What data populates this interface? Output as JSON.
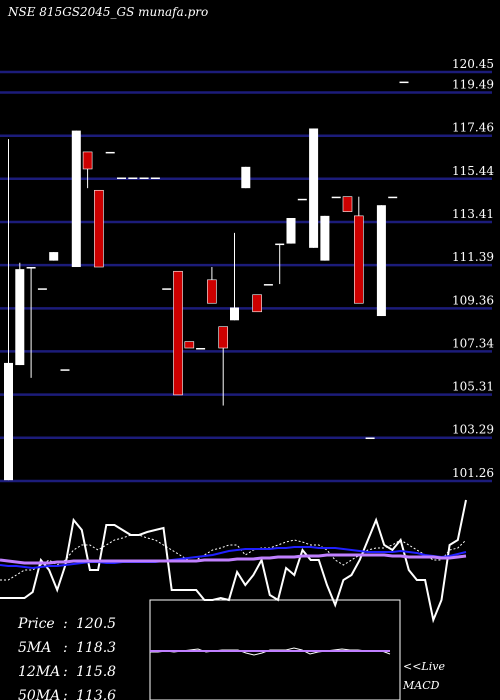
{
  "chart_data": {
    "type": "candlestick",
    "title": "NSE 815GS2045_GS munafa.pro",
    "y_ticks": [
      120.45,
      119.49,
      117.46,
      115.44,
      113.41,
      111.39,
      109.36,
      107.34,
      105.31,
      103.29,
      101.26
    ],
    "ylim": [
      101.26,
      120.45
    ],
    "grid": true,
    "colors": {
      "up": "#ffffff",
      "down": "#cc0000",
      "grid": "#1c1c7a",
      "ma_blue": "#2020ff",
      "ma_violet": "#c080ff",
      "macd_frame": "#ffffff"
    },
    "candles": [
      {
        "o": 101.3,
        "h": 117.3,
        "l": 101.3,
        "c": 106.8
      },
      {
        "o": 106.7,
        "h": 111.5,
        "l": 106.7,
        "c": 111.2
      },
      {
        "o": 111.3,
        "h": 111.3,
        "l": 106.1,
        "c": 111.3
      },
      {
        "o": 110.3,
        "h": 110.3,
        "l": 110.3,
        "c": 110.3
      },
      {
        "o": 111.6,
        "h": 112.0,
        "l": 111.6,
        "c": 112.0
      },
      {
        "o": 106.5,
        "h": 106.5,
        "l": 106.5,
        "c": 106.5
      },
      {
        "o": 111.3,
        "h": 117.7,
        "l": 111.3,
        "c": 117.7
      },
      {
        "o": 116.7,
        "h": 116.7,
        "l": 115.0,
        "c": 115.9
      },
      {
        "o": 114.9,
        "h": 114.9,
        "l": 111.3,
        "c": 111.3
      },
      {
        "o": 116.7,
        "h": 116.7,
        "l": 116.7,
        "c": 116.7
      },
      {
        "o": 115.5,
        "h": 115.5,
        "l": 115.5,
        "c": 115.5
      },
      {
        "o": 115.5,
        "h": 115.5,
        "l": 115.5,
        "c": 115.5
      },
      {
        "o": 115.5,
        "h": 115.5,
        "l": 115.5,
        "c": 115.5
      },
      {
        "o": 115.5,
        "h": 115.5,
        "l": 115.5,
        "c": 115.5
      },
      {
        "o": 110.3,
        "h": 110.3,
        "l": 110.3,
        "c": 110.3
      },
      {
        "o": 111.1,
        "h": 111.1,
        "l": 105.3,
        "c": 105.3
      },
      {
        "o": 107.8,
        "h": 107.8,
        "l": 107.5,
        "c": 107.5
      },
      {
        "o": 107.5,
        "h": 107.5,
        "l": 107.5,
        "c": 107.5
      },
      {
        "o": 110.7,
        "h": 111.3,
        "l": 109.6,
        "c": 109.6
      },
      {
        "o": 108.5,
        "h": 108.5,
        "l": 104.8,
        "c": 107.5
      },
      {
        "o": 108.8,
        "h": 112.9,
        "l": 108.8,
        "c": 109.4
      },
      {
        "o": 115.0,
        "h": 116.0,
        "l": 115.0,
        "c": 116.0
      },
      {
        "o": 110.0,
        "h": 110.0,
        "l": 109.2,
        "c": 109.2
      },
      {
        "o": 110.5,
        "h": 110.5,
        "l": 110.5,
        "c": 110.5
      },
      {
        "o": 112.4,
        "h": 112.4,
        "l": 110.5,
        "c": 112.4
      },
      {
        "o": 112.4,
        "h": 113.6,
        "l": 112.4,
        "c": 113.6
      },
      {
        "o": 114.5,
        "h": 114.5,
        "l": 114.5,
        "c": 114.5
      },
      {
        "o": 112.2,
        "h": 117.8,
        "l": 112.2,
        "c": 117.8
      },
      {
        "o": 111.6,
        "h": 113.7,
        "l": 111.6,
        "c": 113.7
      },
      {
        "o": 114.6,
        "h": 114.6,
        "l": 114.6,
        "c": 114.6
      },
      {
        "o": 114.6,
        "h": 114.6,
        "l": 113.9,
        "c": 113.9
      },
      {
        "o": 113.7,
        "h": 114.6,
        "l": 109.6,
        "c": 109.6
      },
      {
        "o": 103.3,
        "h": 103.3,
        "l": 103.3,
        "c": 103.3
      },
      {
        "o": 109.0,
        "h": 114.2,
        "l": 109.0,
        "c": 114.2
      },
      {
        "o": 114.6,
        "h": 114.6,
        "l": 114.6,
        "c": 114.6
      },
      {
        "o": 120.0,
        "h": 120.0,
        "l": 120.0,
        "c": 120.0
      }
    ],
    "indicator_lines": [
      {
        "name": "white",
        "values": [
          598,
          598,
          598,
          598,
          592,
          560,
          570,
          590,
          565,
          520,
          530,
          570,
          570,
          525,
          525,
          530,
          535,
          535,
          532,
          530,
          528,
          590,
          590,
          590,
          590,
          600,
          600,
          598,
          600,
          572,
          585,
          575,
          560,
          595,
          600,
          568,
          575,
          550,
          560,
          560,
          585,
          605,
          580,
          575,
          560,
          540,
          520,
          545,
          550,
          540,
          570,
          580,
          580,
          620,
          600,
          545,
          540,
          500
        ]
      },
      {
        "name": "dashed",
        "values": [
          580,
          580,
          575,
          570,
          570,
          565,
          560,
          565,
          560,
          550,
          545,
          545,
          550,
          545,
          540,
          538,
          535,
          535,
          538,
          540,
          545,
          550,
          555,
          560,
          560,
          555,
          550,
          548,
          545,
          545,
          555,
          550,
          548,
          548,
          545,
          542,
          540,
          542,
          545,
          545,
          550,
          560,
          565,
          560,
          555,
          550,
          548,
          548,
          545,
          540,
          545,
          550,
          555,
          560,
          560,
          550,
          548,
          540
        ]
      },
      {
        "name": "blue",
        "values": [
          565,
          566,
          566,
          567,
          568,
          567,
          566,
          566,
          565,
          564,
          563,
          562,
          562,
          563,
          563,
          562,
          562,
          562,
          562,
          562,
          561,
          560,
          559,
          558,
          557,
          556,
          555,
          553,
          551,
          550,
          549,
          549,
          549,
          549,
          548,
          548,
          547,
          547,
          547,
          548,
          548,
          548,
          549,
          550,
          551,
          552,
          552,
          552,
          552,
          551,
          552,
          553,
          555,
          556,
          557,
          556,
          554,
          552
        ]
      },
      {
        "name": "violet",
        "values": [
          560,
          561,
          562,
          563,
          563,
          563,
          563,
          562,
          562,
          561,
          561,
          561,
          561,
          561,
          561,
          561,
          561,
          561,
          561,
          561,
          561,
          561,
          561,
          561,
          561,
          560,
          560,
          560,
          560,
          559,
          559,
          559,
          558,
          558,
          557,
          557,
          557,
          556,
          556,
          556,
          555,
          555,
          555,
          555,
          555,
          555,
          555,
          555,
          556,
          556,
          557,
          557,
          557,
          557,
          558,
          558,
          557,
          556
        ]
      },
      {
        "name": "macd",
        "values": [
          652,
          652,
          651,
          652,
          651,
          650,
          649,
          652,
          651,
          650,
          650,
          650,
          653,
          655,
          653,
          650,
          650,
          650,
          648,
          650,
          654,
          652,
          651,
          650,
          649,
          650,
          650,
          651,
          651,
          651,
          654
        ]
      }
    ],
    "stats": [
      {
        "label": "Price",
        "value": "120.5"
      },
      {
        "label": "5MA",
        "value": "118.3"
      },
      {
        "label": "12MA",
        "value": "115.8"
      },
      {
        "label": "50MA",
        "value": "113.6"
      }
    ],
    "side_labels": [
      "<<Live",
      "MACD"
    ]
  }
}
